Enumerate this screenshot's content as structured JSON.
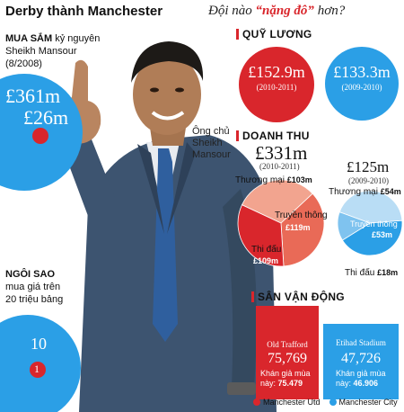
{
  "header": {
    "title": "Derby thành Manchester",
    "subtitle_pre": "Đội nào ",
    "subtitle_em": "“nặng đô”",
    "subtitle_post": " hơn?"
  },
  "colors": {
    "united": "#d9262c",
    "city": "#2b9fe6",
    "united_light": "#f2a48f",
    "city_light": "#b9ddf5"
  },
  "shopping": {
    "heading_bold": "MUA SẮM",
    "heading_rest": " kỷ nguyên",
    "line2": "Sheikh Mansour",
    "line3": "(8/2008)",
    "city_value": "£361m",
    "united_value": "£26m"
  },
  "stars": {
    "heading_bold": "NGÔI SAO",
    "line2": "mua giá trên",
    "line3": "20 triệu bảng",
    "city_value": "10",
    "united_value": "1"
  },
  "caption": {
    "line1": "Ông chủ",
    "line2": "Sheikh",
    "line3": "Mansour"
  },
  "wages": {
    "title": "QUỸ LƯƠNG",
    "united": {
      "value": "£152.9m",
      "season": "(2010-2011)"
    },
    "city": {
      "value": "£133.3m",
      "season": "(2009-2010)"
    }
  },
  "revenue": {
    "title": "DOANH THU",
    "united": {
      "total": "£331m",
      "season": "(2010-2011)",
      "commercial_label": "Thương mại",
      "commercial_value": "£103m",
      "tv_label": "Truyền thông",
      "tv_value": "£119m",
      "matchday_label": "Thi đấu",
      "matchday_value": "£109m"
    },
    "city": {
      "total": "£125m",
      "season": "(2009-2010)",
      "commercial_label": "Thương mại",
      "commercial_value": "£54m",
      "tv_label": "Truyền thông",
      "tv_value": "£53m",
      "matchday_label": "Thi đấu",
      "matchday_value": "£18m"
    }
  },
  "stadium": {
    "title": "SÂN VẬN ĐỘNG",
    "united": {
      "name": "Old Trafford",
      "capacity": "75,769",
      "caption_line1": "Khán giả mùa",
      "caption_line2": "này: ",
      "attendance": "75.479"
    },
    "city": {
      "name": "Etihad Stadium",
      "capacity": "47,726",
      "caption_line1": "Khán giả mùa",
      "caption_line2": "này: ",
      "attendance": "46.906"
    }
  },
  "legend": {
    "united": "Manchester Utd",
    "city": "Manchester City"
  },
  "chart_data": [
    {
      "type": "pie",
      "title": "£331m",
      "categories": [
        "Thương mại",
        "Truyền thông",
        "Thi đấu"
      ],
      "values": [
        103,
        119,
        109
      ]
    },
    {
      "type": "pie",
      "title": "£125m",
      "categories": [
        "Thương mại",
        "Truyền thông",
        "Thi đấu"
      ],
      "values": [
        54,
        53,
        18
      ]
    }
  ]
}
